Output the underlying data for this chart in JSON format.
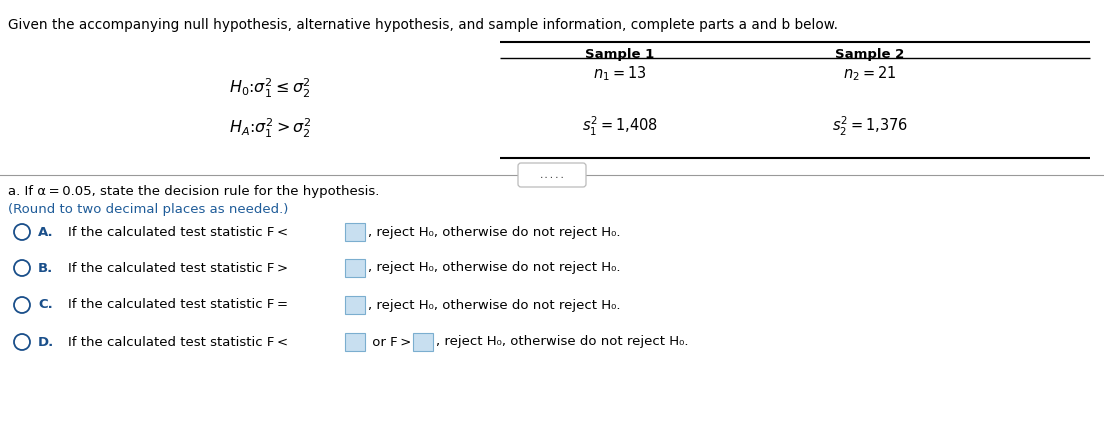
{
  "title_text": "Given the accompanying null hypothesis, alternative hypothesis, and sample information, complete parts a and b below.",
  "sample1_header": "Sample 1",
  "sample2_header": "Sample 2",
  "part_a_line1": "a. If α = 0.05, state the decision rule for the hypothesis.",
  "part_a_line2": "(Round to two decimal places as needed.)",
  "option_A": "A.",
  "option_B": "B.",
  "option_C": "C.",
  "option_D": "D.",
  "text_A": "If the calculated test statistic F < ",
  "text_A2": ", reject H₀, otherwise do not reject H₀.",
  "text_B": "If the calculated test statistic F > ",
  "text_B2": ", reject H₀, otherwise do not reject H₀.",
  "text_C": "If the calculated test statistic F = ",
  "text_C2": ", reject H₀, otherwise do not reject H₀.",
  "text_D": "If the calculated test statistic F < ",
  "text_D2": " or F > ",
  "text_D3": ", reject H₀, otherwise do not reject H₀.",
  "bg_color": "#ffffff",
  "text_color": "#000000",
  "blue_bold_color": "#1f4e9e",
  "link_color": "#1f5c99",
  "option_color": "#1a4f8a",
  "box_fill": "#c8dff0",
  "box_edge": "#7baecf",
  "circle_edge": "#1a4f8a",
  "divider_color": "#999999",
  "dots_text": ".....",
  "fig_w": 11.04,
  "fig_h": 4.43,
  "dpi": 100
}
